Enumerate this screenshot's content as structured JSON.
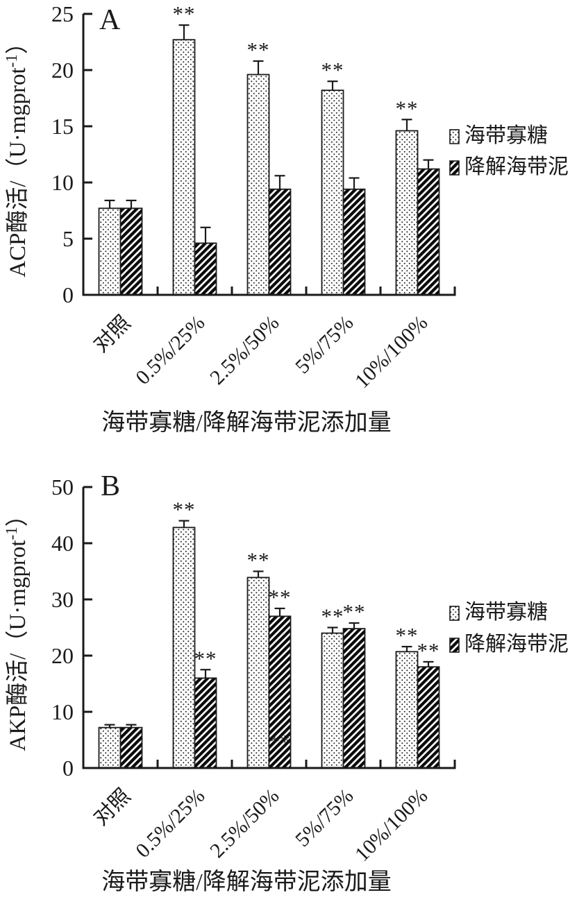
{
  "figure": {
    "background": "#ffffff",
    "ink_color": "#1a1a1a",
    "legend_labels": [
      "海带寡糖",
      "降解海带泥"
    ]
  },
  "chart_data": [
    {
      "type": "bar",
      "panel_label": "A",
      "ylabel_prefix": "ACP酶活/（U·mgprot",
      "ylabel_sup": "-1",
      "ylabel_suffix": "）",
      "xlabel": "海带寡糖/降解海带泥添加量",
      "ylim": [
        0,
        25
      ],
      "yticks": [
        0,
        5,
        10,
        15,
        20,
        25
      ],
      "grid": false,
      "legend_position": "right",
      "categories": [
        "对照",
        "0.5%/25%",
        "2.5%/50%",
        "5%/75%",
        "10%/100%"
      ],
      "series": [
        {
          "name": "海带寡糖",
          "pattern": "dots",
          "values": [
            7.7,
            22.7,
            19.6,
            18.2,
            14.6
          ],
          "errors": [
            0.7,
            1.3,
            1.2,
            0.8,
            1.0
          ],
          "sig": [
            "",
            "**",
            "**",
            "**",
            "**"
          ]
        },
        {
          "name": "降解海带泥",
          "pattern": "hatch",
          "values": [
            7.7,
            4.6,
            9.4,
            9.4,
            11.2
          ],
          "errors": [
            0.7,
            1.4,
            1.2,
            1.0,
            0.8
          ],
          "sig": [
            "",
            "",
            "",
            "",
            ""
          ]
        }
      ],
      "stray_markers": []
    },
    {
      "type": "bar",
      "panel_label": "B",
      "ylabel_prefix": "AKP酶活/（U·mgprot",
      "ylabel_sup": "-1",
      "ylabel_suffix": "）",
      "xlabel": "海带寡糖/降解海带泥添加量",
      "ylim": [
        0,
        50
      ],
      "yticks": [
        0,
        10,
        20,
        30,
        40,
        50
      ],
      "grid": false,
      "legend_position": "right",
      "categories": [
        "对照",
        "0.5%/25%",
        "2.5%/50%",
        "5%/75%",
        "10%/100%"
      ],
      "series": [
        {
          "name": "海带寡糖",
          "pattern": "dots",
          "values": [
            7.2,
            42.8,
            33.9,
            24.0,
            20.7
          ],
          "errors": [
            0.5,
            1.2,
            1.1,
            1.0,
            0.9
          ],
          "sig": [
            "",
            "**",
            "**",
            "**",
            "**"
          ]
        },
        {
          "name": "降解海带泥",
          "pattern": "hatch",
          "values": [
            7.2,
            16.0,
            27.0,
            24.8,
            18.0
          ],
          "errors": [
            0.5,
            1.5,
            1.4,
            1.0,
            0.9
          ],
          "sig": [
            "",
            "**",
            "**",
            "**",
            "**"
          ]
        }
      ],
      "stray_markers": [
        {
          "text": "**",
          "category_index": 2,
          "series_index": 1,
          "y_value": 4.7,
          "opacity": 0.8
        }
      ]
    }
  ]
}
